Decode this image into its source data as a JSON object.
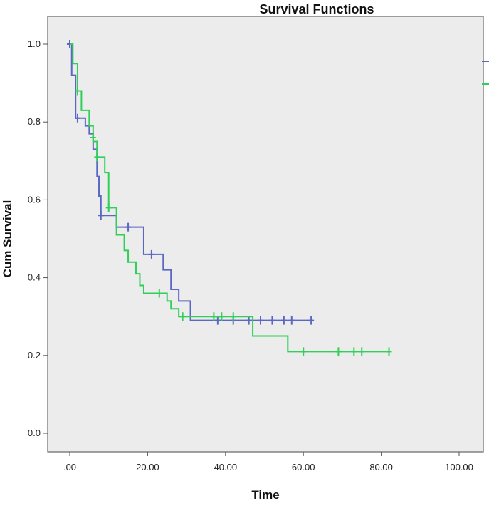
{
  "chart_data": {
    "type": "line",
    "title": "Survival Functions",
    "xlabel": "Time",
    "ylabel": "Cum Survival",
    "xlim": [
      0,
      100
    ],
    "ylim": [
      0,
      1
    ],
    "x_ticks": [
      ".00",
      "20.00",
      "40.00",
      "60.00",
      "80.00",
      "100.00"
    ],
    "y_ticks": [
      "0.0",
      "0.2",
      "0.4",
      "0.6",
      "0.8",
      "1.0"
    ],
    "grid": false,
    "step": true,
    "colors": {
      "plot_background": "#ececec",
      "axis": "#555555"
    },
    "series": [
      {
        "color": "#5b67c4",
        "steps": [
          [
            0,
            1.0
          ],
          [
            0.5,
            0.92
          ],
          [
            1.5,
            0.81
          ],
          [
            4,
            0.79
          ],
          [
            5,
            0.77
          ],
          [
            6,
            0.73
          ],
          [
            7,
            0.66
          ],
          [
            7.5,
            0.61
          ],
          [
            8,
            0.56
          ],
          [
            12,
            0.53
          ],
          [
            19,
            0.46
          ],
          [
            24,
            0.42
          ],
          [
            26,
            0.37
          ],
          [
            28,
            0.34
          ],
          [
            31,
            0.29
          ],
          [
            62,
            0.29
          ]
        ],
        "censored": [
          [
            0,
            1.0
          ],
          [
            2,
            0.81
          ],
          [
            8,
            0.56
          ],
          [
            15,
            0.53
          ],
          [
            21,
            0.46
          ],
          [
            38,
            0.29
          ],
          [
            42,
            0.29
          ],
          [
            46,
            0.29
          ],
          [
            49,
            0.29
          ],
          [
            52,
            0.29
          ],
          [
            55,
            0.29
          ],
          [
            57,
            0.29
          ],
          [
            62,
            0.29
          ]
        ]
      },
      {
        "color": "#2fcf58",
        "steps": [
          [
            0,
            1.0
          ],
          [
            0.8,
            0.95
          ],
          [
            2,
            0.88
          ],
          [
            3,
            0.83
          ],
          [
            5,
            0.79
          ],
          [
            6,
            0.75
          ],
          [
            7,
            0.71
          ],
          [
            9,
            0.67
          ],
          [
            10,
            0.58
          ],
          [
            12,
            0.51
          ],
          [
            14,
            0.47
          ],
          [
            15,
            0.44
          ],
          [
            17,
            0.41
          ],
          [
            18,
            0.38
          ],
          [
            19,
            0.36
          ],
          [
            24,
            0.36
          ],
          [
            25,
            0.34
          ],
          [
            26,
            0.32
          ],
          [
            28,
            0.3
          ],
          [
            47,
            0.25
          ],
          [
            56,
            0.21
          ],
          [
            82,
            0.21
          ]
        ],
        "censored": [
          [
            2,
            0.88
          ],
          [
            6,
            0.76
          ],
          [
            7,
            0.71
          ],
          [
            10,
            0.58
          ],
          [
            23,
            0.36
          ],
          [
            29,
            0.3
          ],
          [
            37,
            0.3
          ],
          [
            39,
            0.3
          ],
          [
            42,
            0.3
          ],
          [
            60,
            0.21
          ],
          [
            69,
            0.21
          ],
          [
            73,
            0.21
          ],
          [
            75,
            0.21
          ],
          [
            82,
            0.21
          ]
        ]
      }
    ]
  }
}
